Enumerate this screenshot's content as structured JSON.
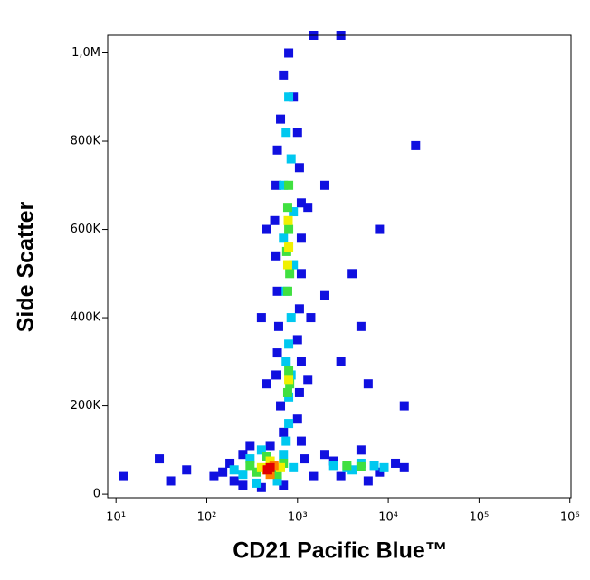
{
  "chart_data": {
    "type": "scatter",
    "x_label": "CD21 Pacific Blue™",
    "y_label": "Side Scatter",
    "x_log": true,
    "xlim": [
      8.1,
      1030000
    ],
    "xticks": [
      {
        "value": 10,
        "label": "10¹"
      },
      {
        "value": 100,
        "label": "10²"
      },
      {
        "value": 1000,
        "label": "10³"
      },
      {
        "value": 10000,
        "label": "10⁴"
      },
      {
        "value": 100000,
        "label": "10⁵"
      },
      {
        "value": 1000000,
        "label": "10⁶"
      }
    ],
    "ylim": [
      -8000,
      1040000
    ],
    "yticks": [
      0,
      {
        "value": 200000,
        "label": "200K"
      },
      {
        "value": 400000,
        "label": "400K"
      },
      {
        "value": 600000,
        "label": "600K"
      },
      {
        "value": 800000,
        "label": "800K"
      },
      {
        "value": 1000000,
        "label": "1,0M"
      }
    ],
    "series": [
      {
        "color": "#1010e0",
        "x": [
          800,
          700,
          900,
          650,
          1000,
          600,
          1050,
          580,
          1100,
          560,
          1100,
          570,
          1100,
          600,
          1050,
          620,
          1000,
          600,
          1100,
          580,
          1050,
          650,
          1000,
          700,
          1100,
          500,
          150,
          200,
          250,
          300,
          1200,
          1500,
          180,
          250,
          700,
          400,
          120,
          2000,
          3000,
          5000,
          8000,
          12000,
          15000,
          2500,
          6000,
          3000,
          4000,
          8000,
          2000,
          20000,
          2000,
          6000,
          40,
          60,
          30,
          12,
          15000,
          5000,
          1500,
          3000,
          450,
          1300,
          400,
          1400,
          450,
          1300
        ],
        "y": [
          1000000,
          950000,
          900000,
          850000,
          820000,
          780000,
          740000,
          700000,
          660000,
          620000,
          580000,
          540000,
          500000,
          460000,
          420000,
          380000,
          350000,
          320000,
          300000,
          270000,
          230000,
          200000,
          170000,
          140000,
          120000,
          110000,
          50000,
          30000,
          90000,
          110000,
          80000,
          40000,
          70000,
          20000,
          20000,
          15000,
          40000,
          90000,
          40000,
          100000,
          50000,
          70000,
          60000,
          75000,
          30000,
          300000,
          500000,
          600000,
          700000,
          790000,
          450000,
          250000,
          30000,
          55000,
          80000,
          40000,
          200000,
          380000,
          1040000,
          1040000,
          600000,
          650000,
          400000,
          400000,
          250000,
          260000
        ]
      },
      {
        "color": "#00c8f0",
        "x": [
          800,
          750,
          850,
          700,
          900,
          700,
          900,
          750,
          850,
          800,
          750,
          850,
          800,
          800,
          750,
          300,
          400,
          700,
          900,
          250,
          350,
          600,
          200,
          2500,
          3500,
          5000,
          7000,
          4000,
          9000
        ],
        "y": [
          900000,
          820000,
          760000,
          700000,
          640000,
          580000,
          520000,
          460000,
          400000,
          340000,
          300000,
          270000,
          220000,
          160000,
          120000,
          80000,
          100000,
          90000,
          60000,
          45000,
          25000,
          30000,
          55000,
          65000,
          60000,
          70000,
          65000,
          55000,
          60000
        ]
      },
      {
        "color": "#40e040",
        "x": [
          800,
          780,
          800,
          760,
          820,
          780,
          800,
          820,
          780,
          350,
          700,
          450,
          300,
          600,
          3500,
          5000
        ],
        "y": [
          700000,
          650000,
          600000,
          550000,
          500000,
          460000,
          280000,
          250000,
          230000,
          50000,
          70000,
          85000,
          65000,
          45000,
          65000,
          62000
        ]
      },
      {
        "color": "#f0f000",
        "x": [
          790,
          800,
          780,
          800,
          400,
          650,
          500
        ],
        "y": [
          620000,
          560000,
          520000,
          260000,
          60000,
          60000,
          75000
        ]
      },
      {
        "color": "#ff8000",
        "x": [
          450,
          550,
          500
        ],
        "y": [
          55000,
          65000,
          45000
        ]
      },
      {
        "color": "#e00000",
        "x": [
          500,
          470
        ],
        "y": [
          60000,
          55000
        ]
      }
    ]
  }
}
